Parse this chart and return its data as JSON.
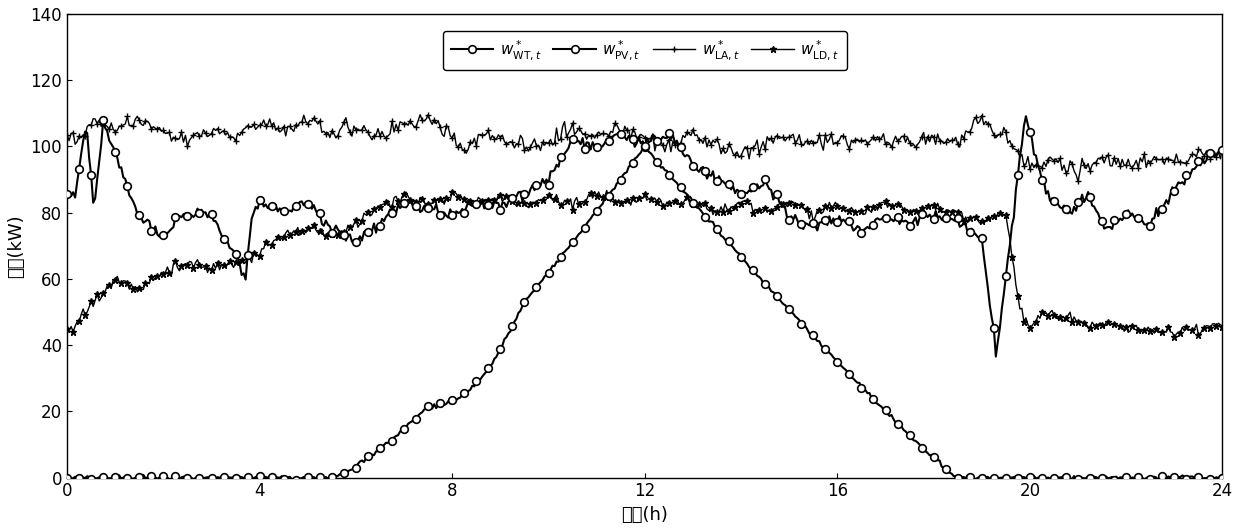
{
  "title": "",
  "xlabel": "时间(h)",
  "ylabel": "功率(kW)",
  "xlim": [
    0,
    24
  ],
  "ylim": [
    0,
    140
  ],
  "xticks": [
    0,
    4,
    8,
    12,
    16,
    20,
    24
  ],
  "yticks": [
    0,
    20,
    40,
    60,
    80,
    100,
    120,
    140
  ],
  "line_color": "#000000",
  "background_color": "#ffffff",
  "legend_labels": [
    "$w^*_{\\mathrm{WT},t}$",
    "$w^*_{\\mathrm{PV},t}$",
    "$w^*_{\\mathrm{LA},t}$",
    "$w^*_{\\mathrm{LD},t}$"
  ]
}
